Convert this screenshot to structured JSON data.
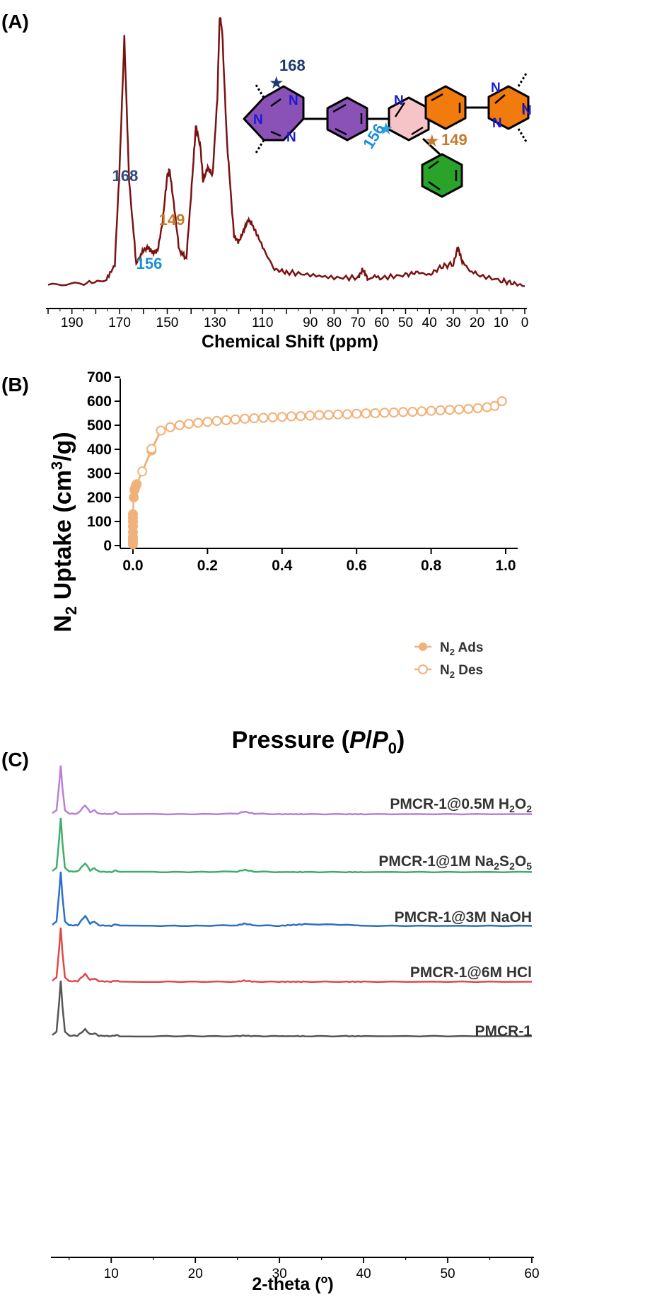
{
  "panels": {
    "a_label": "(A)",
    "b_label": "(B)",
    "c_label": "(C)"
  },
  "nmr": {
    "xlabel": "Chemical Shift (ppm)",
    "ticks": [
      "190",
      "170",
      "150",
      "130",
      "110",
      "90",
      "80",
      "70",
      "60",
      "50",
      "40",
      "30",
      "20",
      "10",
      "0"
    ],
    "peak_labels": [
      {
        "text": "168",
        "color": "#2e4a7d"
      },
      {
        "text": "156",
        "color": "#1f8fd6"
      },
      {
        "text": "149",
        "color": "#c57a2c"
      }
    ],
    "structure_labels": {
      "star_168": "168",
      "star_156": "156",
      "star_149": "149",
      "atom_n": "N"
    },
    "line_color": "#7a1212"
  },
  "isotherm": {
    "xlabel_prefix": "Pressure (",
    "xlabel_p": "P",
    "xlabel_slash": "/",
    "xlabel_p0": "P",
    "xlabel_sub0": "0",
    "xlabel_suffix": ")",
    "ylabel_a": "N",
    "ylabel_sub": "2",
    "ylabel_b": " Uptake (cm",
    "ylabel_sup": "3",
    "ylabel_c": "/g)",
    "yticks": [
      "0",
      "100",
      "200",
      "300",
      "400",
      "500",
      "600",
      "700"
    ],
    "xticks": [
      "0.0",
      "0.2",
      "0.4",
      "0.6",
      "0.8",
      "1.0"
    ],
    "legend_ads_a": "N",
    "legend_ads_sub": "2",
    "legend_ads_b": " Ads",
    "legend_des_a": "N",
    "legend_des_sub": "2",
    "legend_des_b": " Des",
    "color": "#f0b27a"
  },
  "pxrd": {
    "xlabel_a": "2-theta (",
    "xlabel_sup": "o",
    "xlabel_b": ")",
    "xticks": [
      "10",
      "20",
      "30",
      "40",
      "50",
      "60"
    ],
    "traces": [
      {
        "label_a": "PMCR-1@0.5M H",
        "sub1": "2",
        "label_b": "O",
        "sub2": "2",
        "label_c": "",
        "color": "#b97fd8"
      },
      {
        "label_a": "PMCR-1@1M Na",
        "sub1": "2",
        "label_b": "S",
        "sub2": "2",
        "label_c": "O",
        "sub3": "5",
        "color": "#3fae6a"
      },
      {
        "label_a": "PMCR-1@3M NaOH",
        "color": "#2e6fc4"
      },
      {
        "label_a": "PMCR-1@6M HCl",
        "color": "#e0484a"
      },
      {
        "label_a": "PMCR-1",
        "color": "#555555"
      }
    ]
  },
  "chart_data": [
    {
      "type": "line",
      "title": "",
      "xlabel": "Chemical Shift (ppm)",
      "ylabel": "",
      "xlim": [
        200,
        0
      ],
      "x": [
        200,
        185,
        176,
        172,
        170,
        168,
        166,
        163,
        160,
        158,
        156,
        154,
        152,
        150,
        149,
        147,
        145,
        142,
        140,
        138,
        136,
        135,
        133,
        131,
        129,
        128,
        127,
        125,
        122,
        120,
        118,
        116,
        114,
        110,
        105,
        100,
        90,
        80,
        70,
        68,
        66,
        60,
        50,
        45,
        40,
        35,
        30,
        28,
        26,
        20,
        10,
        5,
        0
      ],
      "series": [
        {
          "values": [
            0.02,
            0.03,
            0.04,
            0.1,
            0.45,
            0.92,
            0.4,
            0.1,
            0.15,
            0.16,
            0.14,
            0.15,
            0.25,
            0.42,
            0.44,
            0.3,
            0.15,
            0.12,
            0.35,
            0.6,
            0.52,
            0.4,
            0.45,
            0.42,
            0.7,
            1.0,
            0.95,
            0.55,
            0.2,
            0.18,
            0.22,
            0.26,
            0.24,
            0.16,
            0.08,
            0.07,
            0.06,
            0.05,
            0.05,
            0.08,
            0.05,
            0.05,
            0.06,
            0.07,
            0.06,
            0.09,
            0.1,
            0.16,
            0.1,
            0.06,
            0.04,
            0.03,
            0.02
          ]
        }
      ],
      "peak_annotations": [
        168,
        156,
        149
      ]
    },
    {
      "type": "scatter",
      "title": "",
      "xlabel": "Pressure (P/P0)",
      "ylabel": "N2 Uptake (cm3/g)",
      "xlim": [
        0,
        1.0
      ],
      "ylim": [
        0,
        700
      ],
      "series": [
        {
          "name": "N2 Ads",
          "x": [
            0.0,
            0.0,
            0.0,
            0.0,
            0.0,
            0.0,
            0.0,
            0.0,
            0.0,
            0.002,
            0.004,
            0.006,
            0.008,
            0.01,
            0.05,
            0.075,
            0.1,
            0.125,
            0.15,
            0.175,
            0.2,
            0.225,
            0.25,
            0.275,
            0.3,
            0.325,
            0.35,
            0.375,
            0.4,
            0.425,
            0.45,
            0.475,
            0.5,
            0.525,
            0.55,
            0.575,
            0.6,
            0.625,
            0.65,
            0.675,
            0.7,
            0.725,
            0.75,
            0.775,
            0.8,
            0.825,
            0.85,
            0.875,
            0.9,
            0.925,
            0.95,
            0.97,
            0.99
          ],
          "values": [
            5,
            15,
            25,
            35,
            55,
            80,
            100,
            115,
            130,
            200,
            230,
            240,
            250,
            255,
            395,
            478,
            492,
            500,
            506,
            510,
            514,
            518,
            521,
            524,
            527,
            529,
            531,
            533,
            535,
            537,
            538,
            540,
            542,
            543,
            545,
            546,
            548,
            549,
            550,
            552,
            553,
            555,
            556,
            558,
            560,
            562,
            564,
            566,
            568,
            571,
            575,
            580,
            600
          ]
        },
        {
          "name": "N2 Des",
          "x": [
            0.99,
            0.97,
            0.95,
            0.925,
            0.9,
            0.875,
            0.85,
            0.825,
            0.8,
            0.775,
            0.75,
            0.725,
            0.7,
            0.675,
            0.65,
            0.625,
            0.6,
            0.575,
            0.55,
            0.525,
            0.5,
            0.475,
            0.45,
            0.425,
            0.4,
            0.375,
            0.35,
            0.325,
            0.3,
            0.275,
            0.25,
            0.225,
            0.2,
            0.175,
            0.15,
            0.125,
            0.1,
            0.075,
            0.05,
            0.025
          ],
          "values": [
            600,
            580,
            575,
            571,
            568,
            566,
            564,
            562,
            560,
            558,
            556,
            555,
            553,
            552,
            550,
            549,
            548,
            546,
            545,
            543,
            542,
            540,
            538,
            537,
            535,
            533,
            531,
            529,
            527,
            524,
            521,
            518,
            514,
            510,
            506,
            500,
            492,
            478,
            402,
            308
          ]
        }
      ]
    },
    {
      "type": "line",
      "title": "",
      "xlabel": "2-theta (o)",
      "ylabel": "",
      "xlim": [
        3,
        60
      ],
      "x": [
        3,
        3.5,
        3.8,
        4.0,
        4.2,
        4.5,
        5,
        6,
        6.9,
        7.5,
        8.0,
        8.5,
        10,
        10.6,
        11,
        15,
        20,
        25,
        25.8,
        27,
        30,
        32,
        33,
        38,
        40,
        50,
        60
      ],
      "series": [
        {
          "name": "PMCR-1@0.5M H2O2",
          "values": [
            0.04,
            0.1,
            0.6,
            1.0,
            0.55,
            0.1,
            0.03,
            0.03,
            0.2,
            0.06,
            0.1,
            0.03,
            0.02,
            0.06,
            0.02,
            0.02,
            0.02,
            0.03,
            0.07,
            0.03,
            0.02,
            0.02,
            0.02,
            0.02,
            0.02,
            0.02,
            0.02
          ]
        },
        {
          "name": "PMCR-1@1M Na2S2O5",
          "values": [
            0.04,
            0.1,
            0.6,
            1.0,
            0.55,
            0.1,
            0.03,
            0.03,
            0.18,
            0.05,
            0.09,
            0.03,
            0.02,
            0.05,
            0.02,
            0.02,
            0.02,
            0.03,
            0.06,
            0.03,
            0.02,
            0.02,
            0.02,
            0.02,
            0.02,
            0.02,
            0.02
          ]
        },
        {
          "name": "PMCR-1@3M NaOH",
          "values": [
            0.04,
            0.1,
            0.6,
            1.0,
            0.55,
            0.1,
            0.03,
            0.03,
            0.2,
            0.06,
            0.1,
            0.03,
            0.02,
            0.05,
            0.02,
            0.02,
            0.02,
            0.03,
            0.06,
            0.03,
            0.02,
            0.04,
            0.05,
            0.04,
            0.02,
            0.02,
            0.02
          ]
        },
        {
          "name": "PMCR-1@6M HCl",
          "values": [
            0.04,
            0.1,
            0.6,
            1.0,
            0.55,
            0.1,
            0.03,
            0.03,
            0.16,
            0.05,
            0.08,
            0.03,
            0.02,
            0.04,
            0.02,
            0.02,
            0.02,
            0.02,
            0.04,
            0.02,
            0.02,
            0.02,
            0.02,
            0.02,
            0.02,
            0.02,
            0.02
          ]
        },
        {
          "name": "PMCR-1",
          "values": [
            0.04,
            0.1,
            0.6,
            1.0,
            0.55,
            0.1,
            0.03,
            0.03,
            0.14,
            0.05,
            0.07,
            0.03,
            0.02,
            0.04,
            0.02,
            0.02,
            0.02,
            0.02,
            0.03,
            0.02,
            0.02,
            0.02,
            0.02,
            0.02,
            0.02,
            0.02,
            0.02
          ]
        }
      ]
    }
  ]
}
